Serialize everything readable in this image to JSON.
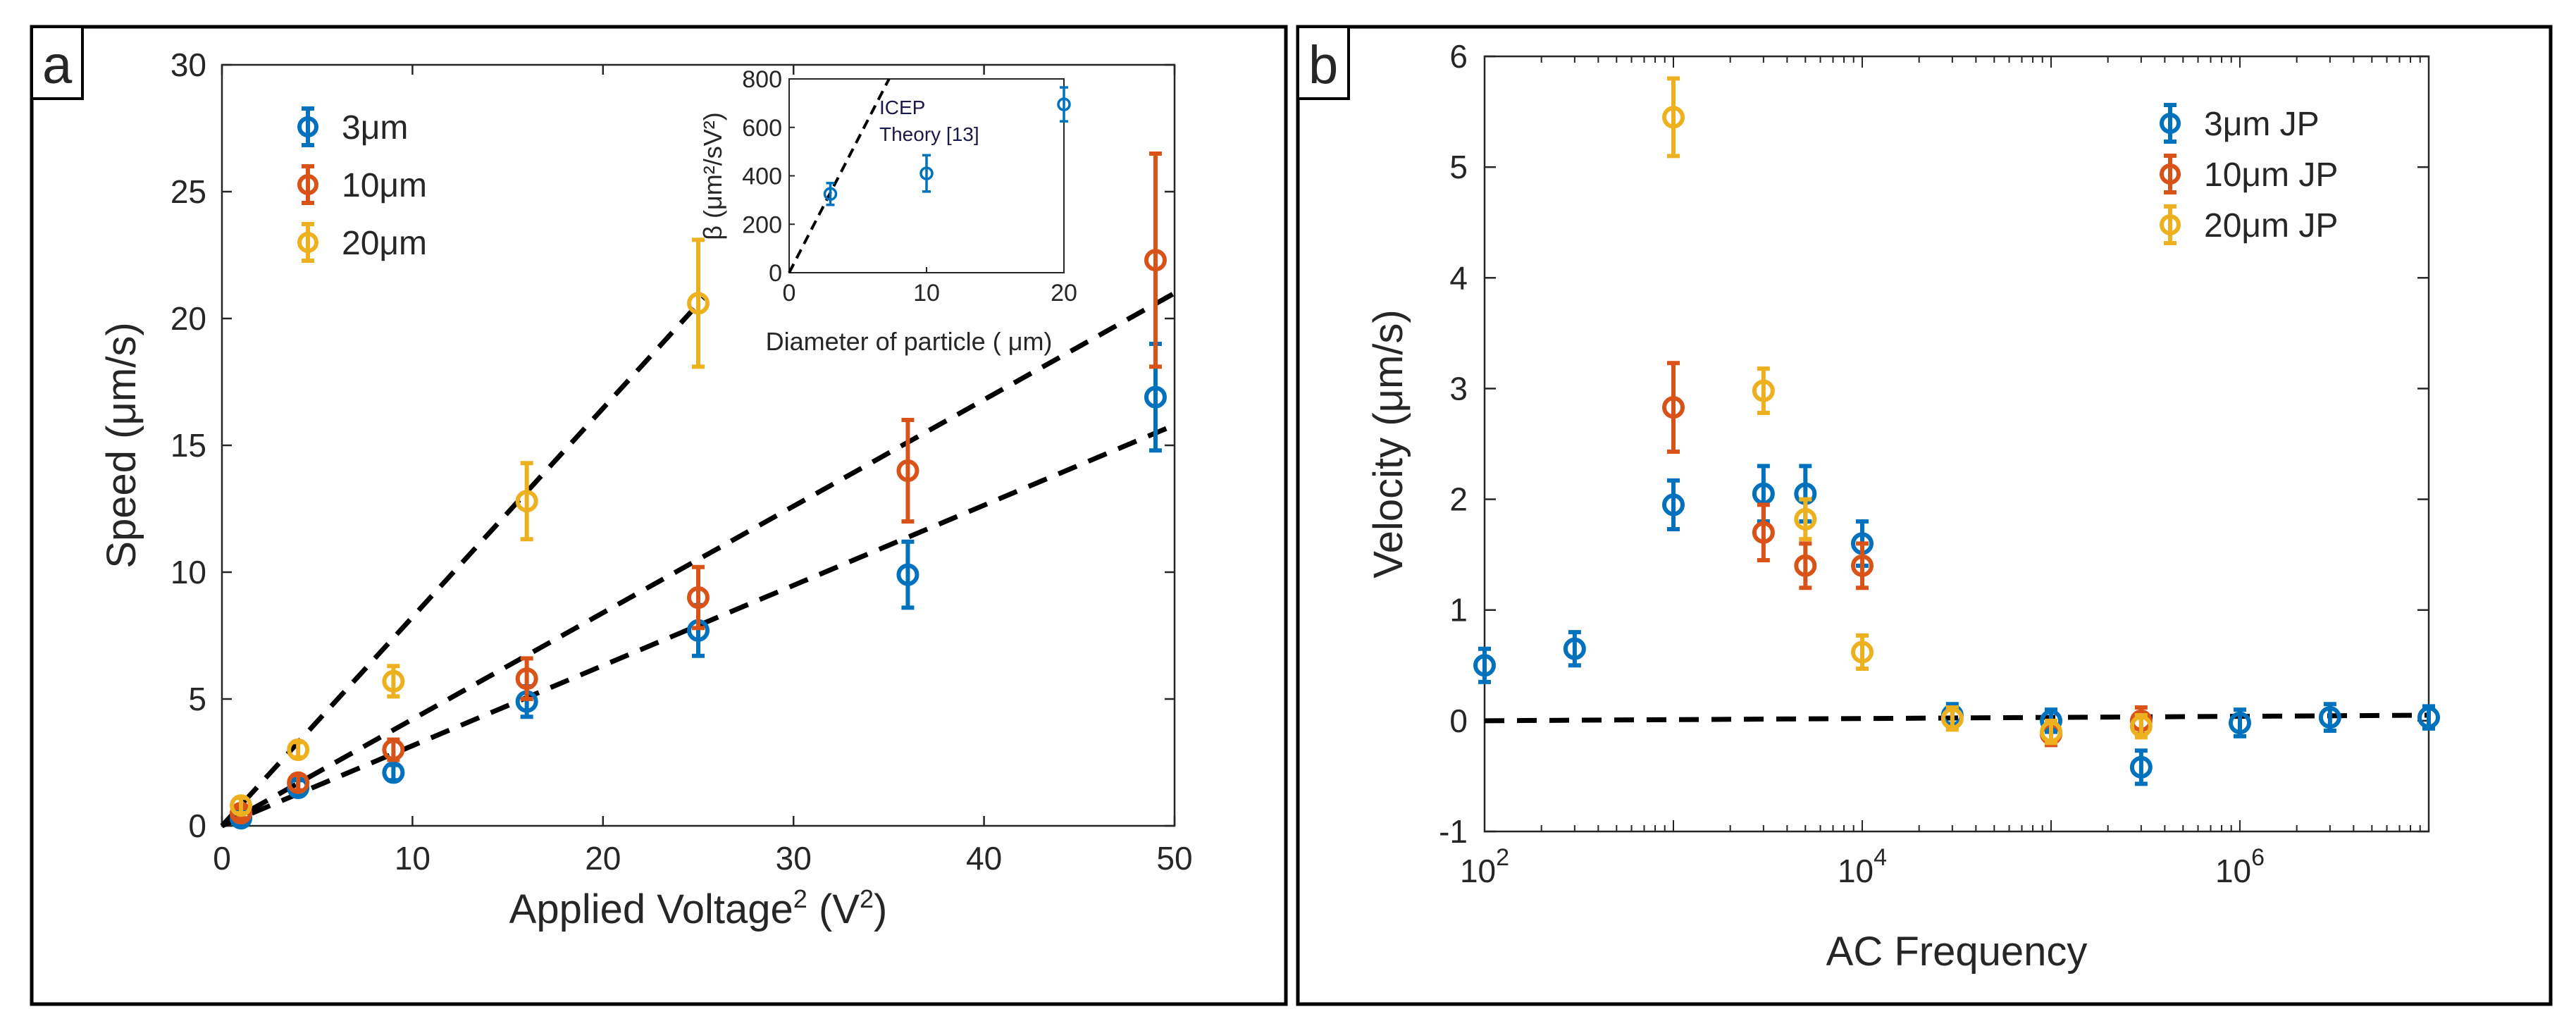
{
  "colors": {
    "blue": "#0072BD",
    "orange": "#D95319",
    "yellow": "#EDB120",
    "fit": "#000000",
    "frame": "#000000"
  },
  "chart_data": [
    {
      "panel": "a",
      "type": "scatter",
      "xlabel_main": "Applied Voltage",
      "xlabel_sup": "2",
      "xlabel_tail": " (V",
      "xlabel_sup2": "2",
      "xlabel_end": ")",
      "ylabel": "Speed (μm/s)",
      "xlim": [
        0,
        50
      ],
      "ylim": [
        0,
        30
      ],
      "xticks": [
        0,
        10,
        20,
        30,
        40,
        50
      ],
      "yticks": [
        0,
        5,
        10,
        15,
        20,
        25,
        30
      ],
      "legend_position": "top-left",
      "series": [
        {
          "name": "3μm",
          "color": "#0072BD",
          "x": [
            1,
            4,
            9,
            16,
            25,
            36,
            49
          ],
          "y": [
            0.3,
            1.5,
            2.1,
            4.9,
            7.7,
            9.9,
            16.9
          ],
          "err": [
            0.2,
            0.3,
            0.3,
            0.6,
            1.0,
            1.3,
            2.1
          ],
          "fit_slope": 0.316
        },
        {
          "name": "10μm",
          "color": "#D95319",
          "x": [
            1,
            4,
            9,
            16,
            25,
            36,
            49
          ],
          "y": [
            0.5,
            1.7,
            3.0,
            5.8,
            9.0,
            14.0,
            22.3
          ],
          "err": [
            0.2,
            0.3,
            0.4,
            0.8,
            1.2,
            2.0,
            4.2
          ],
          "fit_slope": 0.42
        },
        {
          "name": "20μm",
          "color": "#EDB120",
          "x": [
            1,
            4,
            9,
            16,
            25
          ],
          "y": [
            0.8,
            3.0,
            5.7,
            12.8,
            20.6
          ],
          "err": [
            0.3,
            0.3,
            0.6,
            1.5,
            2.5
          ],
          "fit_slope": 0.823
        }
      ],
      "inset": {
        "xlabel": "Diameter of particle (",
        "xlabel_unit": "μm)",
        "ylabel": "β (μm²/sV²)",
        "xlim": [
          0,
          20
        ],
        "ylim": [
          0,
          800
        ],
        "xticks": [
          0,
          10,
          20
        ],
        "yticks": [
          0,
          200,
          400,
          600,
          800
        ],
        "x": [
          3,
          10,
          20
        ],
        "y": [
          325,
          410,
          695
        ],
        "err": [
          45,
          75,
          70
        ],
        "theory_label_1": "ICEP",
        "theory_label_2": "Theory [13]",
        "theory_slope": 110
      }
    },
    {
      "panel": "b",
      "type": "scatter",
      "xlabel": "AC Frequency",
      "ylabel": "Velocity (μm/s)",
      "xscale": "log",
      "xlim_exp": [
        2,
        7
      ],
      "ylim": [
        -1,
        6
      ],
      "xticks_exp": [
        2,
        4,
        6
      ],
      "xtick_base": "10",
      "yticks": [
        -1,
        0,
        1,
        2,
        3,
        4,
        5,
        6
      ],
      "legend_position": "top-right",
      "series": [
        {
          "name": "3μm JP",
          "color": "#0072BD",
          "x": [
            100,
            300,
            1000,
            3000,
            5000,
            10000,
            30000,
            100000,
            300000,
            1000000,
            3000000,
            10000000
          ],
          "y": [
            0.5,
            0.65,
            1.95,
            2.05,
            2.05,
            1.6,
            0.05,
            0.0,
            -0.42,
            -0.02,
            0.03,
            0.03
          ],
          "err": [
            0.15,
            0.15,
            0.22,
            0.25,
            0.25,
            0.2,
            0.1,
            0.1,
            0.15,
            0.12,
            0.12,
            0.1
          ]
        },
        {
          "name": "10μm JP",
          "color": "#D95319",
          "x": [
            1000,
            3000,
            5000,
            10000,
            100000,
            300000
          ],
          "y": [
            2.83,
            1.7,
            1.4,
            1.4,
            -0.12,
            0.0
          ],
          "err": [
            0.4,
            0.25,
            0.2,
            0.2,
            0.1,
            0.12
          ]
        },
        {
          "name": "20μm JP",
          "color": "#EDB120",
          "x": [
            1000,
            3000,
            5000,
            10000,
            30000,
            100000,
            300000
          ],
          "y": [
            5.45,
            2.98,
            1.82,
            0.62,
            0.02,
            -0.1,
            -0.05
          ],
          "err": [
            0.35,
            0.2,
            0.18,
            0.15,
            0.1,
            0.1,
            0.1
          ]
        }
      ],
      "fit_line": {
        "x": [
          100,
          10000000
        ],
        "y": [
          0.0,
          0.05
        ]
      }
    }
  ]
}
